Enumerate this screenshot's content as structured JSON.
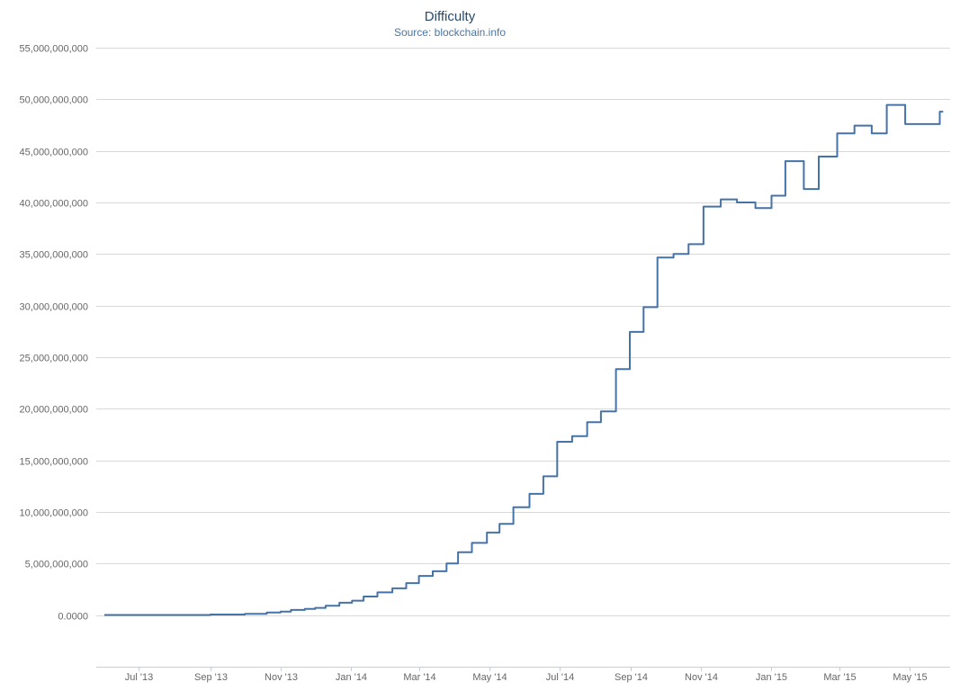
{
  "chart_data": {
    "type": "line",
    "title": "Difficulty",
    "subtitle": "Source: blockchain.info",
    "xlabel": "",
    "ylabel": "",
    "ylim": [
      -5000000000,
      55000000000
    ],
    "grid": true,
    "legend": "none",
    "colors": {
      "line": "#4572a7",
      "grid": "#d8d8d8",
      "axis": "#c0d0e0",
      "title": "#274b6d",
      "subtitle": "#4d759e"
    },
    "y_ticks": [
      {
        "value": 0,
        "label": "0.0000"
      },
      {
        "value": 5000000000,
        "label": "5,000,000,000"
      },
      {
        "value": 10000000000,
        "label": "10,000,000,000"
      },
      {
        "value": 15000000000,
        "label": "15,000,000,000"
      },
      {
        "value": 20000000000,
        "label": "20,000,000,000"
      },
      {
        "value": 25000000000,
        "label": "25,000,000,000"
      },
      {
        "value": 30000000000,
        "label": "30,000,000,000"
      },
      {
        "value": 35000000000,
        "label": "35,000,000,000"
      },
      {
        "value": 40000000000,
        "label": "40,000,000,000"
      },
      {
        "value": 45000000000,
        "label": "45,000,000,000"
      },
      {
        "value": 50000000000,
        "label": "50,000,000,000"
      },
      {
        "value": 55000000000,
        "label": "55,000,000,000"
      }
    ],
    "x_ticks": [
      {
        "date": "2013-07-01",
        "label": "Jul '13"
      },
      {
        "date": "2013-09-01",
        "label": "Sep '13"
      },
      {
        "date": "2013-11-01",
        "label": "Nov '13"
      },
      {
        "date": "2014-01-01",
        "label": "Jan '14"
      },
      {
        "date": "2014-03-01",
        "label": "Mar '14"
      },
      {
        "date": "2014-05-01",
        "label": "May '14"
      },
      {
        "date": "2014-07-01",
        "label": "Jul '14"
      },
      {
        "date": "2014-09-01",
        "label": "Sep '14"
      },
      {
        "date": "2014-11-01",
        "label": "Nov '14"
      },
      {
        "date": "2015-01-01",
        "label": "Jan '15"
      },
      {
        "date": "2015-03-01",
        "label": "Mar '15"
      },
      {
        "date": "2015-05-01",
        "label": "May '15"
      }
    ],
    "xlim": [
      "2013-05-25",
      "2015-06-05"
    ],
    "series": [
      {
        "values": [
          [
            "2013-06-01",
            15000000
          ],
          [
            "2013-09-01",
            60000000
          ],
          [
            "2013-10-01",
            130000000
          ],
          [
            "2013-10-20",
            250000000
          ],
          [
            "2013-11-01",
            350000000
          ],
          [
            "2013-11-10",
            500000000
          ],
          [
            "2013-11-22",
            600000000
          ],
          [
            "2013-12-01",
            700000000
          ],
          [
            "2013-12-10",
            900000000
          ],
          [
            "2013-12-22",
            1200000000
          ],
          [
            "2014-01-02",
            1400000000
          ],
          [
            "2014-01-12",
            1800000000
          ],
          [
            "2014-01-24",
            2200000000
          ],
          [
            "2014-02-06",
            2600000000
          ],
          [
            "2014-02-18",
            3100000000
          ],
          [
            "2014-03-01",
            3800000000
          ],
          [
            "2014-03-13",
            4250000000
          ],
          [
            "2014-03-25",
            5000000000
          ],
          [
            "2014-04-04",
            6100000000
          ],
          [
            "2014-04-16",
            7000000000
          ],
          [
            "2014-04-29",
            8000000000
          ],
          [
            "2014-05-10",
            8850000000
          ],
          [
            "2014-05-22",
            10450000000
          ],
          [
            "2014-06-05",
            11750000000
          ],
          [
            "2014-06-17",
            13450000000
          ],
          [
            "2014-06-29",
            16800000000
          ],
          [
            "2014-07-12",
            17350000000
          ],
          [
            "2014-07-25",
            18700000000
          ],
          [
            "2014-08-06",
            19750000000
          ],
          [
            "2014-08-19",
            23850000000
          ],
          [
            "2014-08-31",
            27450000000
          ],
          [
            "2014-09-12",
            29850000000
          ],
          [
            "2014-09-24",
            34650000000
          ],
          [
            "2014-10-08",
            35000000000
          ],
          [
            "2014-10-21",
            35950000000
          ],
          [
            "2014-11-03",
            39600000000
          ],
          [
            "2014-11-18",
            40300000000
          ],
          [
            "2014-12-02",
            40000000000
          ],
          [
            "2014-12-18",
            39450000000
          ],
          [
            "2015-01-01",
            40650000000
          ],
          [
            "2015-01-13",
            44000000000
          ],
          [
            "2015-01-29",
            41300000000
          ],
          [
            "2015-02-11",
            44450000000
          ],
          [
            "2015-02-27",
            46700000000
          ],
          [
            "2015-03-14",
            47450000000
          ],
          [
            "2015-03-29",
            46700000000
          ],
          [
            "2015-04-11",
            49450000000
          ],
          [
            "2015-04-27",
            47600000000
          ],
          [
            "2015-05-27",
            48800000000
          ],
          [
            "2015-05-30",
            48800000000
          ]
        ]
      }
    ]
  }
}
